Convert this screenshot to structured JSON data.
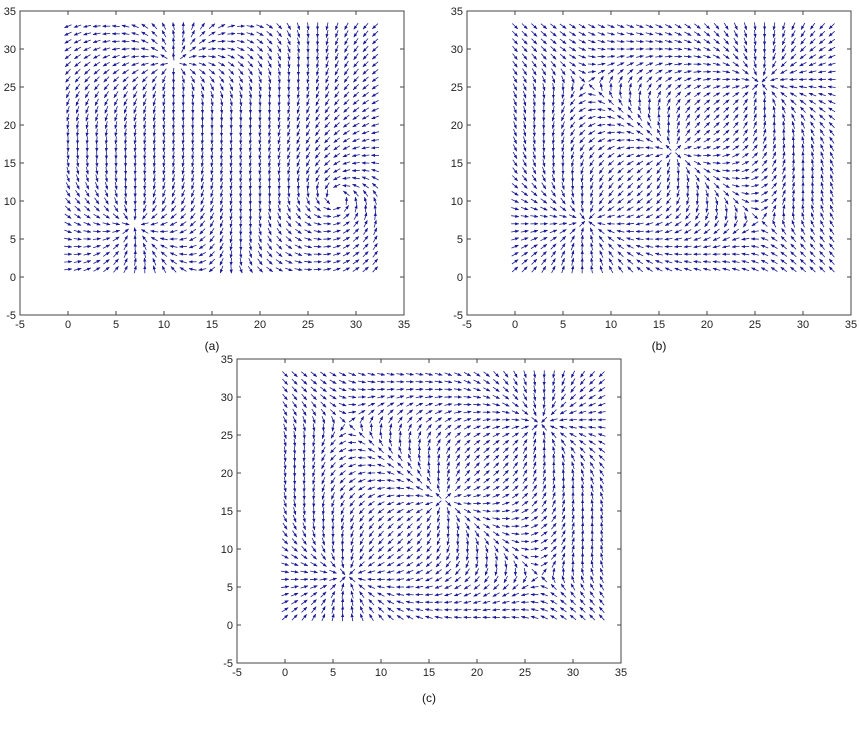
{
  "figure": {
    "background": "#ffffff",
    "arrow_color": "#1a1a99",
    "axes_color": "#444444"
  },
  "chart_data": [
    {
      "type": "quiver",
      "caption": "(a)",
      "xlim": [
        -5,
        35
      ],
      "ylim": [
        -5,
        35
      ],
      "xticks": [
        "-5",
        "0",
        "5",
        "10",
        "15",
        "20",
        "25",
        "30",
        "35"
      ],
      "yticks": [
        "-5",
        "0",
        "5",
        "10",
        "15",
        "20",
        "25",
        "30",
        "35"
      ],
      "grid": false,
      "field_domain": {
        "x": [
          0,
          32
        ],
        "y": [
          1,
          33
        ],
        "spacing": 1
      },
      "singular_points": [
        {
          "x": 11,
          "y": 28,
          "type": "source"
        },
        {
          "x": 6.8,
          "y": 7,
          "type": "sink"
        },
        {
          "x": 28,
          "y": 10.5,
          "type": "vortex"
        }
      ]
    },
    {
      "type": "quiver",
      "caption": "(b)",
      "xlim": [
        -5,
        35
      ],
      "ylim": [
        -5,
        35
      ],
      "xticks": [
        "-5",
        "0",
        "5",
        "10",
        "15",
        "20",
        "25",
        "30",
        "35"
      ],
      "yticks": [
        "-5",
        "0",
        "5",
        "10",
        "15",
        "20",
        "25",
        "30",
        "35"
      ],
      "grid": false,
      "field_domain": {
        "x": [
          0,
          33
        ],
        "y": [
          1,
          33
        ],
        "spacing": 1
      },
      "singular_points": [
        {
          "x": 25.5,
          "y": 25.5,
          "type": "sink"
        },
        {
          "x": 16.5,
          "y": 16.5,
          "type": "source"
        },
        {
          "x": 7.5,
          "y": 7.5,
          "type": "sink"
        }
      ]
    },
    {
      "type": "quiver",
      "caption": "(c)",
      "xlim": [
        -5,
        35
      ],
      "ylim": [
        -5,
        35
      ],
      "xticks": [
        "-5",
        "0",
        "5",
        "10",
        "15",
        "20",
        "25",
        "30",
        "35"
      ],
      "yticks": [
        "-5",
        "0",
        "5",
        "10",
        "15",
        "20",
        "25",
        "30",
        "35"
      ],
      "grid": false,
      "field_domain": {
        "x": [
          0,
          33
        ],
        "y": [
          1,
          33
        ],
        "spacing": 1
      },
      "singular_points": [
        {
          "x": 26.5,
          "y": 26.5,
          "type": "sink"
        },
        {
          "x": 16.5,
          "y": 16.5,
          "type": "source"
        },
        {
          "x": 6.5,
          "y": 6.5,
          "type": "sink"
        }
      ]
    }
  ]
}
